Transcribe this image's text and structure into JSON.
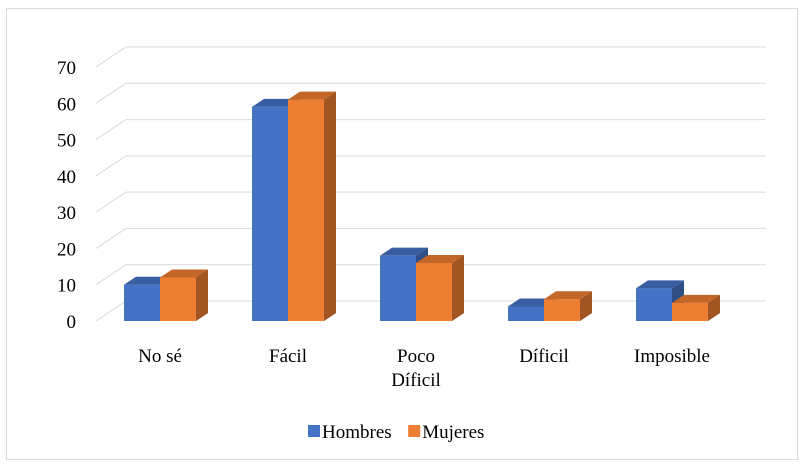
{
  "chart_data": {
    "type": "bar",
    "style": "3d-clustered-column",
    "categories": [
      [
        "No sé"
      ],
      [
        "Fácil"
      ],
      [
        "Poco",
        "Díficil"
      ],
      [
        "Díficil"
      ],
      [
        "Imposible"
      ]
    ],
    "series": [
      {
        "name": "Hombres",
        "color": "#4472c4",
        "values": [
          10,
          59,
          18,
          4,
          9
        ]
      },
      {
        "name": "Mujeres",
        "color": "#ed7d31",
        "values": [
          12,
          61,
          16,
          6,
          5
        ]
      }
    ],
    "yticks": [
      0,
      10,
      20,
      30,
      40,
      50,
      60,
      70
    ],
    "ylim": [
      0,
      70
    ],
    "grid": true,
    "legend_position": "bottom",
    "title": "",
    "xlabel": "",
    "ylabel": ""
  }
}
